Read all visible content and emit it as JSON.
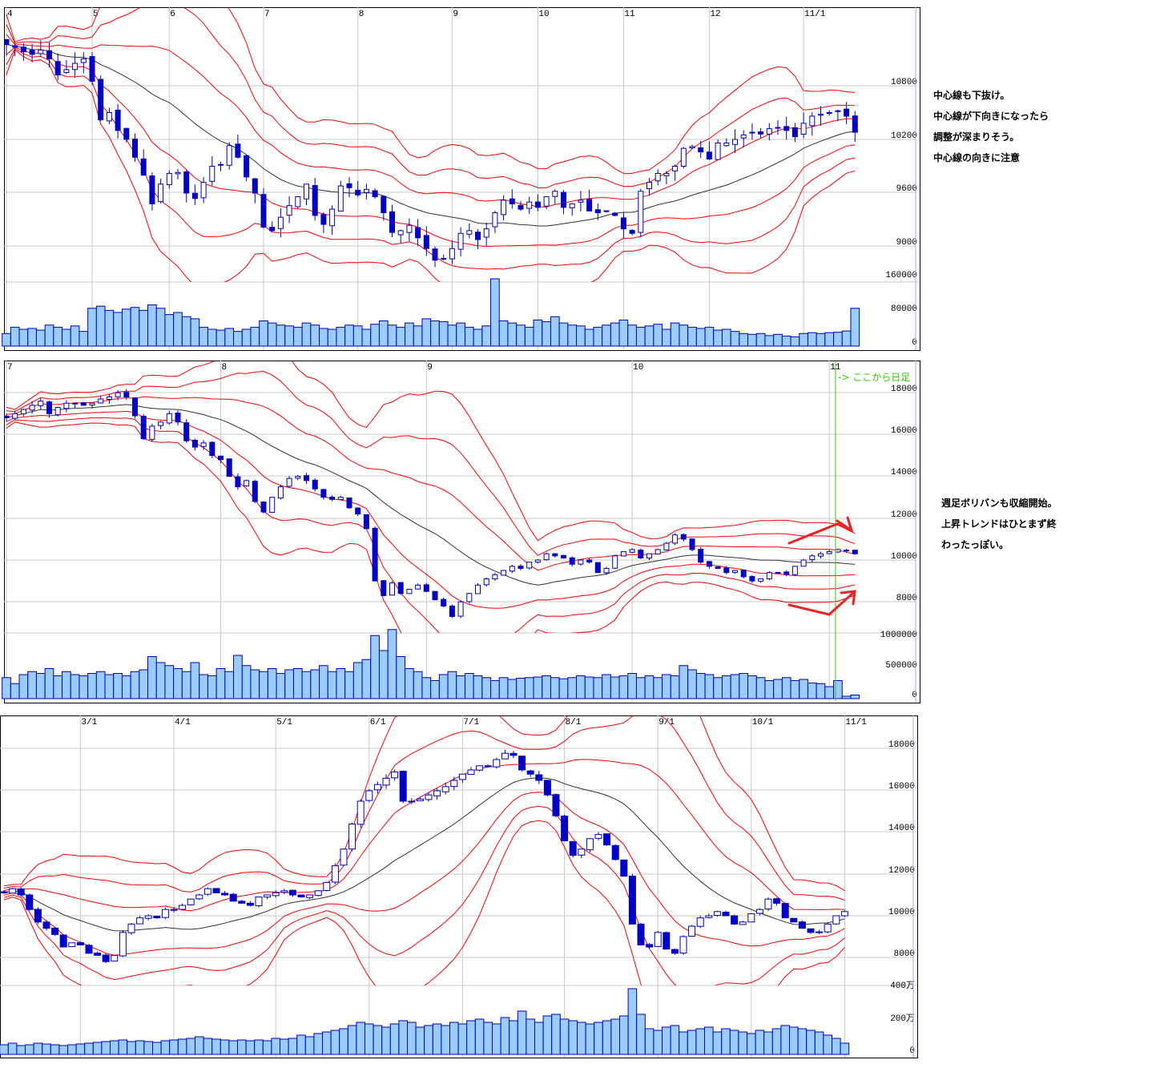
{
  "notes": {
    "panel1": [
      "中心線も下抜け。",
      "中心線が下向きになったら",
      "調整が深まりそう。",
      "中心線の向きに注意"
    ],
    "panel2": [
      "週足ボリバンも収縮開始。",
      "上昇トレンドはひとまず終",
      "わったっぽい。"
    ],
    "panel2_marker": "-> ここから日足"
  },
  "colors": {
    "candle": "#0000cc",
    "band": "#ff0000",
    "ma": "#000000",
    "volume_fill": "#99ccff",
    "volume_edge": "#0000cc",
    "grid": "#c8c8c8",
    "marker": "#33cc00",
    "arrow": "#ee2222"
  },
  "chart_data": [
    {
      "type": "candlestick",
      "title": "",
      "overlays": [
        "bollinger ±1σ/±2σ/±3σ",
        "moving average"
      ],
      "x_ticks": [
        {
          "label": "4",
          "bar": 0
        },
        {
          "label": "5",
          "bar": 10
        },
        {
          "label": "6",
          "bar": 19
        },
        {
          "label": "7",
          "bar": 30
        },
        {
          "label": "8",
          "bar": 41
        },
        {
          "label": "9",
          "bar": 52
        },
        {
          "label": "10",
          "bar": 62
        },
        {
          "label": "11",
          "bar": 72
        },
        {
          "label": "12",
          "bar": 82
        },
        {
          "label": "11/1",
          "bar": 93
        }
      ],
      "y_ticks": [
        "10800",
        "10200",
        "9600",
        "9000"
      ],
      "ylim": [
        8700,
        11400
      ],
      "volume_ticks": [
        "160000",
        "80000",
        "0"
      ],
      "close": [
        11260,
        11230,
        11180,
        11150,
        11200,
        11100,
        10920,
        10980,
        11050,
        11100,
        10850,
        10420,
        10500,
        10300,
        10200,
        10000,
        9800,
        9480,
        9700,
        9820,
        9830,
        9600,
        9540,
        9720,
        9900,
        9920,
        10130,
        10000,
        9780,
        9600,
        9220,
        9180,
        9330,
        9460,
        9560,
        9700,
        9350,
        9250,
        9420,
        9680,
        9660,
        9580,
        9640,
        9560,
        9380,
        9160,
        9180,
        9240,
        9100,
        8980,
        8850,
        8870,
        8980,
        9150,
        9180,
        9080,
        9200,
        9380,
        9520,
        9480,
        9420,
        9500,
        9440,
        9560,
        9620,
        9440,
        9480,
        9520,
        9400,
        9380,
        9400,
        9350,
        9200,
        9150,
        9620,
        9720,
        9820,
        9820,
        9900,
        10100,
        10120,
        10060,
        9980,
        10160,
        10160,
        10200,
        10250,
        10280,
        10260,
        10320,
        10330,
        10300,
        10230,
        10380,
        10460,
        10480,
        10500,
        10520,
        10460,
        10280
      ],
      "volume": [
        30000,
        45000,
        40000,
        42000,
        38000,
        50000,
        45000,
        40000,
        48000,
        35000,
        90000,
        95000,
        85000,
        80000,
        88000,
        92000,
        85000,
        98000,
        90000,
        75000,
        80000,
        70000,
        65000,
        45000,
        40000,
        38000,
        42000,
        35000,
        40000,
        45000,
        60000,
        55000,
        50000,
        48000,
        45000,
        55000,
        50000,
        42000,
        40000,
        45000,
        50000,
        48000,
        40000,
        52000,
        60000,
        50000,
        45000,
        55000,
        48000,
        65000,
        60000,
        58000,
        50000,
        55000,
        45000,
        40000,
        48000,
        160000,
        60000,
        55000,
        50000,
        45000,
        62000,
        58000,
        70000,
        55000,
        50000,
        48000,
        40000,
        45000,
        50000,
        55000,
        62000,
        50000,
        45000,
        48000,
        52000,
        40000,
        55000,
        50000,
        45000,
        42000,
        45000,
        38000,
        40000,
        35000,
        30000,
        28000,
        30000,
        25000,
        28000,
        24000,
        22000,
        30000,
        32000,
        30000,
        32000,
        33000,
        36000,
        90000
      ]
    },
    {
      "type": "candlestick",
      "title": "",
      "overlays": [
        "bollinger ±1σ/±2σ/±3σ",
        "moving average"
      ],
      "x_ticks": [
        {
          "label": "7",
          "bar": 0
        },
        {
          "label": "8",
          "bar": 25
        },
        {
          "label": "9",
          "bar": 49
        },
        {
          "label": "10",
          "bar": 73
        },
        {
          "label": "11",
          "bar": 96
        }
      ],
      "y_ticks": [
        "18000",
        "16000",
        "14000",
        "12000",
        "10000",
        "8000"
      ],
      "ylim": [
        6000,
        19000
      ],
      "volume_ticks": [
        "1000000",
        "500000",
        "0"
      ],
      "close": [
        16800,
        17000,
        17200,
        17400,
        17600,
        17000,
        17300,
        17500,
        17500,
        17400,
        17500,
        17700,
        17800,
        18000,
        17800,
        16900,
        15800,
        16400,
        16600,
        17000,
        16600,
        15700,
        15400,
        15600,
        15000,
        14800,
        14000,
        13500,
        13800,
        12800,
        12300,
        13000,
        13500,
        13900,
        14000,
        13800,
        13400,
        13000,
        12900,
        13000,
        12500,
        12200,
        11500,
        9000,
        8300,
        8900,
        8400,
        8600,
        8800,
        8500,
        8100,
        7800,
        7300,
        8000,
        8400,
        8800,
        9100,
        9300,
        9500,
        9700,
        9600,
        9900,
        10000,
        10300,
        10200,
        10100,
        9800,
        10000,
        9900,
        9400,
        9600,
        10200,
        10400,
        10500,
        10100,
        10300,
        10500,
        10800,
        11200,
        11000,
        10500,
        9900,
        9700,
        9600,
        9400,
        9500,
        9200,
        9000,
        9100,
        9400,
        9400,
        9300,
        9700,
        10000,
        10200,
        10300,
        10400,
        10500,
        10450,
        10300
      ],
      "volume": [
        350000,
        250000,
        400000,
        450000,
        420000,
        500000,
        380000,
        450000,
        400000,
        380000,
        420000,
        450000,
        400000,
        420000,
        380000,
        450000,
        480000,
        700000,
        600000,
        550000,
        500000,
        450000,
        600000,
        400000,
        380000,
        500000,
        450000,
        720000,
        550000,
        480000,
        450000,
        500000,
        420000,
        480000,
        500000,
        450000,
        480000,
        550000,
        450000,
        500000,
        450000,
        600000,
        650000,
        1050000,
        800000,
        1150000,
        700000,
        500000,
        450000,
        350000,
        300000,
        400000,
        450000,
        380000,
        420000,
        380000,
        350000,
        300000,
        350000,
        320000,
        340000,
        350000,
        360000,
        380000,
        350000,
        330000,
        350000,
        380000,
        360000,
        350000,
        400000,
        360000,
        380000,
        420000,
        350000,
        380000,
        350000,
        400000,
        380000,
        550000,
        480000,
        420000,
        400000,
        350000,
        380000,
        400000,
        420000,
        380000,
        350000,
        300000,
        320000,
        350000,
        300000,
        320000,
        260000,
        250000,
        200000,
        300000,
        40000,
        60000
      ]
    },
    {
      "type": "candlestick",
      "title": "",
      "overlays": [
        "bollinger ±1σ/±2σ/±3σ",
        "moving average"
      ],
      "x_ticks": [
        {
          "label": "3/1",
          "bar": 9
        },
        {
          "label": "4/1",
          "bar": 20
        },
        {
          "label": "5/1",
          "bar": 32
        },
        {
          "label": "6/1",
          "bar": 43
        },
        {
          "label": "7/1",
          "bar": 54
        },
        {
          "label": "8/1",
          "bar": 66
        },
        {
          "label": "9/1",
          "bar": 77
        },
        {
          "label": "10/1",
          "bar": 88
        },
        {
          "label": "11/1",
          "bar": 99
        }
      ],
      "y_ticks": [
        "18000",
        "16000",
        "14000",
        "12000",
        "10000",
        "8000"
      ],
      "ylim": [
        7000,
        19000
      ],
      "volume_ticks": [
        "400万",
        "200万",
        "0"
      ],
      "close": [
        11100,
        11300,
        11000,
        10300,
        9700,
        9400,
        9100,
        8500,
        8700,
        8600,
        8200,
        8100,
        7800,
        8100,
        9200,
        9600,
        9900,
        10000,
        9900,
        10300,
        10300,
        10500,
        10800,
        11000,
        11300,
        11100,
        11000,
        10700,
        10600,
        10500,
        10900,
        11000,
        11100,
        11200,
        11000,
        10900,
        11000,
        11200,
        11600,
        12400,
        13200,
        14400,
        15500,
        16000,
        16300,
        16600,
        16900,
        15500,
        15500,
        15600,
        15800,
        16000,
        16200,
        16500,
        16800,
        17000,
        17200,
        17200,
        17500,
        17800,
        17700,
        17000,
        16800,
        16500,
        15800,
        14800,
        13600,
        12900,
        13200,
        13700,
        13900,
        13400,
        12700,
        11900,
        9600,
        8600,
        8500,
        9200,
        8400,
        8200,
        9000,
        9500,
        9900,
        10000,
        10200,
        10000,
        9600,
        9700,
        10100,
        10300,
        10800,
        10600,
        9900,
        9700,
        9400,
        9200,
        9200,
        9600,
        10000,
        10200
      ],
      "volume_unit": "万",
      "volume": [
        60,
        70,
        55,
        60,
        70,
        65,
        60,
        55,
        60,
        65,
        70,
        75,
        80,
        85,
        90,
        80,
        85,
        80,
        75,
        85,
        90,
        95,
        100,
        110,
        100,
        95,
        90,
        85,
        90,
        85,
        90,
        85,
        100,
        95,
        100,
        120,
        110,
        130,
        140,
        150,
        160,
        180,
        200,
        190,
        180,
        170,
        190,
        210,
        200,
        170,
        180,
        190,
        180,
        200,
        190,
        210,
        220,
        200,
        190,
        230,
        210,
        270,
        220,
        200,
        240,
        250,
        220,
        210,
        200,
        190,
        200,
        210,
        220,
        240,
        410,
        250,
        160,
        150,
        170,
        180,
        140,
        150,
        160,
        170,
        140,
        160,
        150,
        140,
        130,
        150,
        140,
        160,
        180,
        170,
        160,
        150,
        140,
        120,
        100,
        70
      ]
    }
  ]
}
